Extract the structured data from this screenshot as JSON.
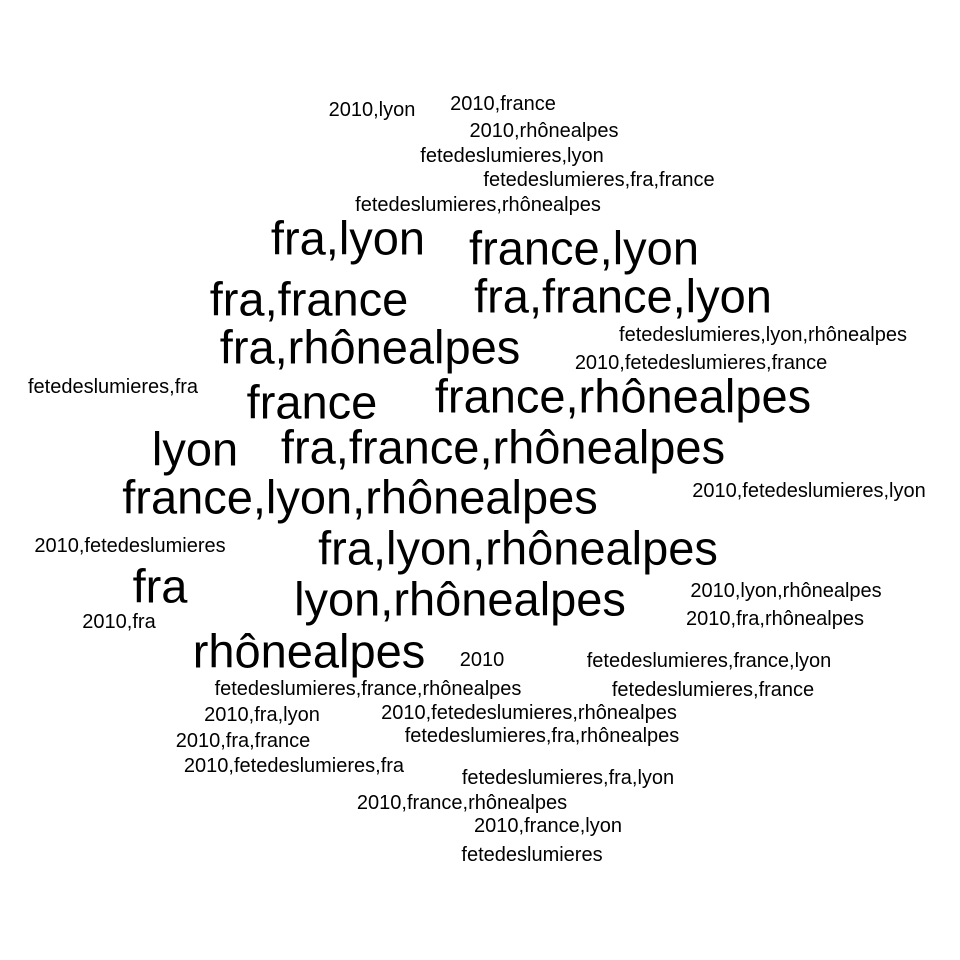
{
  "word_cloud": {
    "color": "#000000",
    "words": [
      {
        "text": "2010,lyon",
        "weight": 1
      },
      {
        "text": "2010,france",
        "weight": 1
      },
      {
        "text": "2010,rhônealpes",
        "weight": 1
      },
      {
        "text": "fetedeslumieres,lyon",
        "weight": 1
      },
      {
        "text": "fetedeslumieres,fra,france",
        "weight": 1
      },
      {
        "text": "fetedeslumieres,rhônealpes",
        "weight": 1
      },
      {
        "text": "fra,lyon",
        "weight": 2
      },
      {
        "text": "france,lyon",
        "weight": 2
      },
      {
        "text": "fra,france",
        "weight": 2
      },
      {
        "text": "fra,france,lyon",
        "weight": 2
      },
      {
        "text": "fra,rhônealpes",
        "weight": 2
      },
      {
        "text": "fetedeslumieres,lyon,rhônealpes",
        "weight": 1
      },
      {
        "text": "2010,fetedeslumieres,france",
        "weight": 1
      },
      {
        "text": "fetedeslumieres,fra",
        "weight": 1
      },
      {
        "text": "france",
        "weight": 2
      },
      {
        "text": "france,rhônealpes",
        "weight": 2
      },
      {
        "text": "lyon",
        "weight": 2
      },
      {
        "text": "fra,france,rhônealpes",
        "weight": 2
      },
      {
        "text": "france,lyon,rhônealpes",
        "weight": 2
      },
      {
        "text": "2010,fetedeslumieres,lyon",
        "weight": 1
      },
      {
        "text": "2010,fetedeslumieres",
        "weight": 1
      },
      {
        "text": "fra,lyon,rhônealpes",
        "weight": 2
      },
      {
        "text": "fra",
        "weight": 2
      },
      {
        "text": "lyon,rhônealpes",
        "weight": 2
      },
      {
        "text": "2010,lyon,rhônealpes",
        "weight": 1
      },
      {
        "text": "2010,fra",
        "weight": 1
      },
      {
        "text": "2010,fra,rhônealpes",
        "weight": 1
      },
      {
        "text": "rhônealpes",
        "weight": 2
      },
      {
        "text": "2010",
        "weight": 1
      },
      {
        "text": "fetedeslumieres,france,lyon",
        "weight": 1
      },
      {
        "text": "fetedeslumieres,france,rhônealpes",
        "weight": 1
      },
      {
        "text": "fetedeslumieres,france",
        "weight": 1
      },
      {
        "text": "2010,fra,lyon",
        "weight": 1
      },
      {
        "text": "2010,fetedeslumieres,rhônealpes",
        "weight": 1
      },
      {
        "text": "2010,fra,france",
        "weight": 1
      },
      {
        "text": "fetedeslumieres,fra,rhônealpes",
        "weight": 1
      },
      {
        "text": "2010,fetedeslumieres,fra",
        "weight": 1
      },
      {
        "text": "fetedeslumieres,fra,lyon",
        "weight": 1
      },
      {
        "text": "2010,france,rhônealpes",
        "weight": 1
      },
      {
        "text": "2010,france,lyon",
        "weight": 1
      },
      {
        "text": "fetedeslumieres",
        "weight": 1
      }
    ]
  }
}
